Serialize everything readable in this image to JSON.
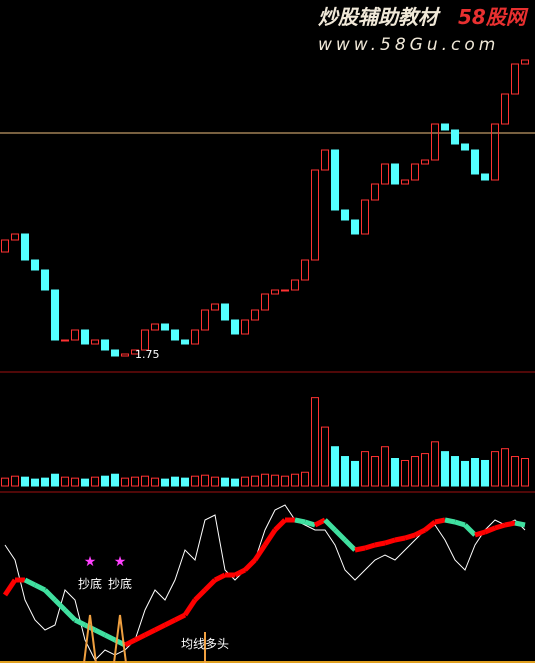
{
  "header": {
    "title": "炒股辅助教材",
    "brand": "58股网",
    "url": "www.58Gu.com"
  },
  "chart_data": [
    {
      "type": "candlestick",
      "open": [
        2.3,
        2.36,
        2.39,
        2.26,
        2.21,
        2.11,
        1.86,
        1.86,
        1.91,
        1.84,
        1.86,
        1.81,
        1.78,
        1.79,
        1.81,
        1.91,
        1.94,
        1.91,
        1.86,
        1.84,
        1.91,
        2.01,
        2.04,
        1.96,
        1.89,
        1.96,
        2.01,
        2.09,
        2.11,
        2.11,
        2.16,
        2.26,
        2.71,
        2.81,
        2.51,
        2.46,
        2.39,
        2.56,
        2.64,
        2.74,
        2.64,
        2.66,
        2.74,
        2.76,
        2.94,
        2.91,
        2.84,
        2.81,
        2.69,
        2.66,
        2.94,
        3.09,
        3.24
      ],
      "close": [
        2.36,
        2.39,
        2.26,
        2.21,
        2.11,
        1.86,
        1.86,
        1.91,
        1.84,
        1.86,
        1.81,
        1.78,
        1.79,
        1.81,
        1.91,
        1.94,
        1.91,
        1.86,
        1.84,
        1.91,
        2.01,
        2.04,
        1.96,
        1.89,
        1.96,
        2.01,
        2.09,
        2.11,
        2.11,
        2.16,
        2.26,
        2.71,
        2.81,
        2.51,
        2.46,
        2.39,
        2.56,
        2.64,
        2.74,
        2.64,
        2.66,
        2.74,
        2.76,
        2.94,
        2.91,
        2.84,
        2.81,
        2.69,
        2.66,
        2.94,
        3.09,
        3.24,
        3.26
      ],
      "up_color": "#ff3232",
      "down_color": "#54ffff",
      "ylim": [
        1.7,
        3.56
      ],
      "hline": 2.895,
      "hline_color": "#f0c080",
      "low_label": 1.75
    },
    {
      "type": "bar",
      "values": [
        8,
        10,
        9,
        7,
        8,
        12,
        9,
        8,
        7,
        9,
        10,
        12,
        8,
        9,
        10,
        8,
        7,
        9,
        8,
        10,
        11,
        9,
        8,
        7,
        9,
        10,
        12,
        11,
        10,
        12,
        14,
        90,
        60,
        40,
        30,
        25,
        35,
        30,
        40,
        28,
        26,
        30,
        33,
        45,
        35,
        30,
        25,
        28,
        26,
        35,
        38,
        30,
        28
      ],
      "ylim": [
        0,
        110
      ]
    },
    {
      "type": "line",
      "series": [
        {
          "color": "#ffffff",
          "values": [
            118,
            103,
            63,
            43,
            33,
            38,
            73,
            63,
            23,
            3,
            13,
            8,
            13,
            23,
            53,
            73,
            63,
            83,
            113,
            103,
            143,
            148,
            93,
            83,
            93,
            103,
            133,
            153,
            158,
            143,
            138,
            133,
            133,
            118,
            93,
            83,
            93,
            103,
            108,
            103,
            113,
            123,
            133,
            138,
            123,
            103,
            93,
            118,
            133,
            143,
            138,
            143,
            133
          ]
        },
        {
          "color": "#ff0000",
          "down_color": "#40e0a0",
          "values": [
            68,
            83,
            83,
            78,
            73,
            63,
            53,
            43,
            38,
            33,
            28,
            23,
            18,
            23,
            28,
            33,
            38,
            43,
            48,
            63,
            73,
            83,
            88,
            88,
            93,
            103,
            118,
            133,
            143,
            143,
            141,
            138,
            143,
            133,
            123,
            113,
            115,
            118,
            120,
            123,
            125,
            128,
            133,
            141,
            143,
            141,
            138,
            128,
            131,
            135,
            138,
            140,
            138
          ]
        }
      ],
      "ylim": [
        0,
        165
      ],
      "annotations": [
        "抄底",
        "抄底",
        "均线多头"
      ]
    }
  ]
}
